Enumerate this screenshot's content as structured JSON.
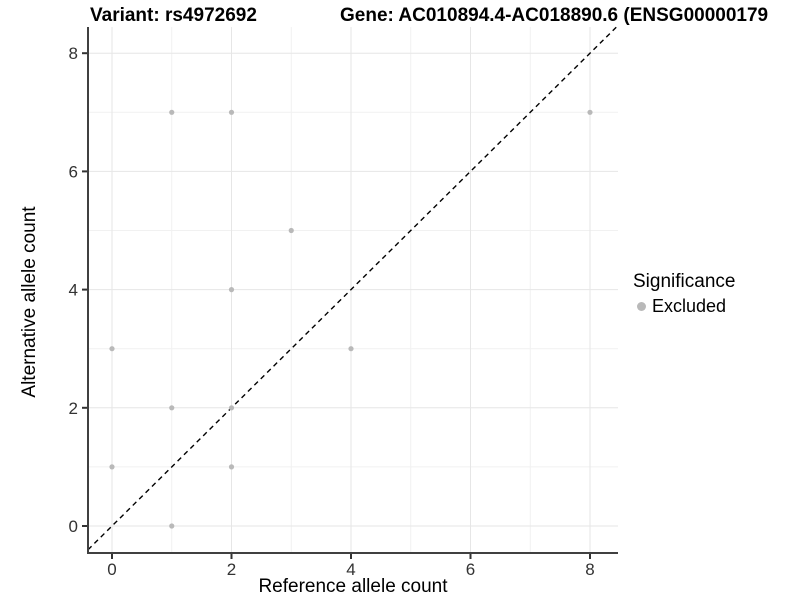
{
  "titles": {
    "left": "Variant: rs4972692",
    "right": "Gene: AC010894.4-AC018890.6 (ENSG00000179"
  },
  "legend": {
    "title": "Significance",
    "items": [
      {
        "label": "Excluded",
        "color": "#b9b9b9"
      }
    ]
  },
  "chart_data": {
    "type": "scatter",
    "xlabel": "Reference allele count",
    "ylabel": "Alternative allele count",
    "xlim": [
      -0.4,
      8.47
    ],
    "ylim": [
      -0.46,
      8.45
    ],
    "xticks": [
      0,
      2,
      4,
      6,
      8
    ],
    "yticks": [
      0,
      2,
      4,
      6,
      8
    ],
    "xminor": [
      1,
      3,
      5,
      7
    ],
    "yminor": [
      1,
      3,
      5,
      7
    ],
    "grid": true,
    "legend_position": "right",
    "series": [
      {
        "name": "Excluded",
        "color": "#b9b9b9",
        "points": [
          [
            0,
            1
          ],
          [
            0,
            3
          ],
          [
            1,
            0
          ],
          [
            1,
            2
          ],
          [
            1,
            7
          ],
          [
            2,
            1
          ],
          [
            2,
            2
          ],
          [
            2,
            4
          ],
          [
            2,
            7
          ],
          [
            3,
            5
          ],
          [
            4,
            3
          ],
          [
            8,
            7
          ]
        ]
      }
    ],
    "abline": {
      "slope": 1,
      "intercept": 0,
      "style": "dashed",
      "color": "#000000"
    },
    "colors": {
      "grid_major": "#e6e6e6",
      "grid_minor": "#f1f1f1",
      "axis_line": "#404040",
      "tick_mark": "#333333",
      "tick_label": "#333333",
      "point": "#b9b9b9"
    }
  }
}
